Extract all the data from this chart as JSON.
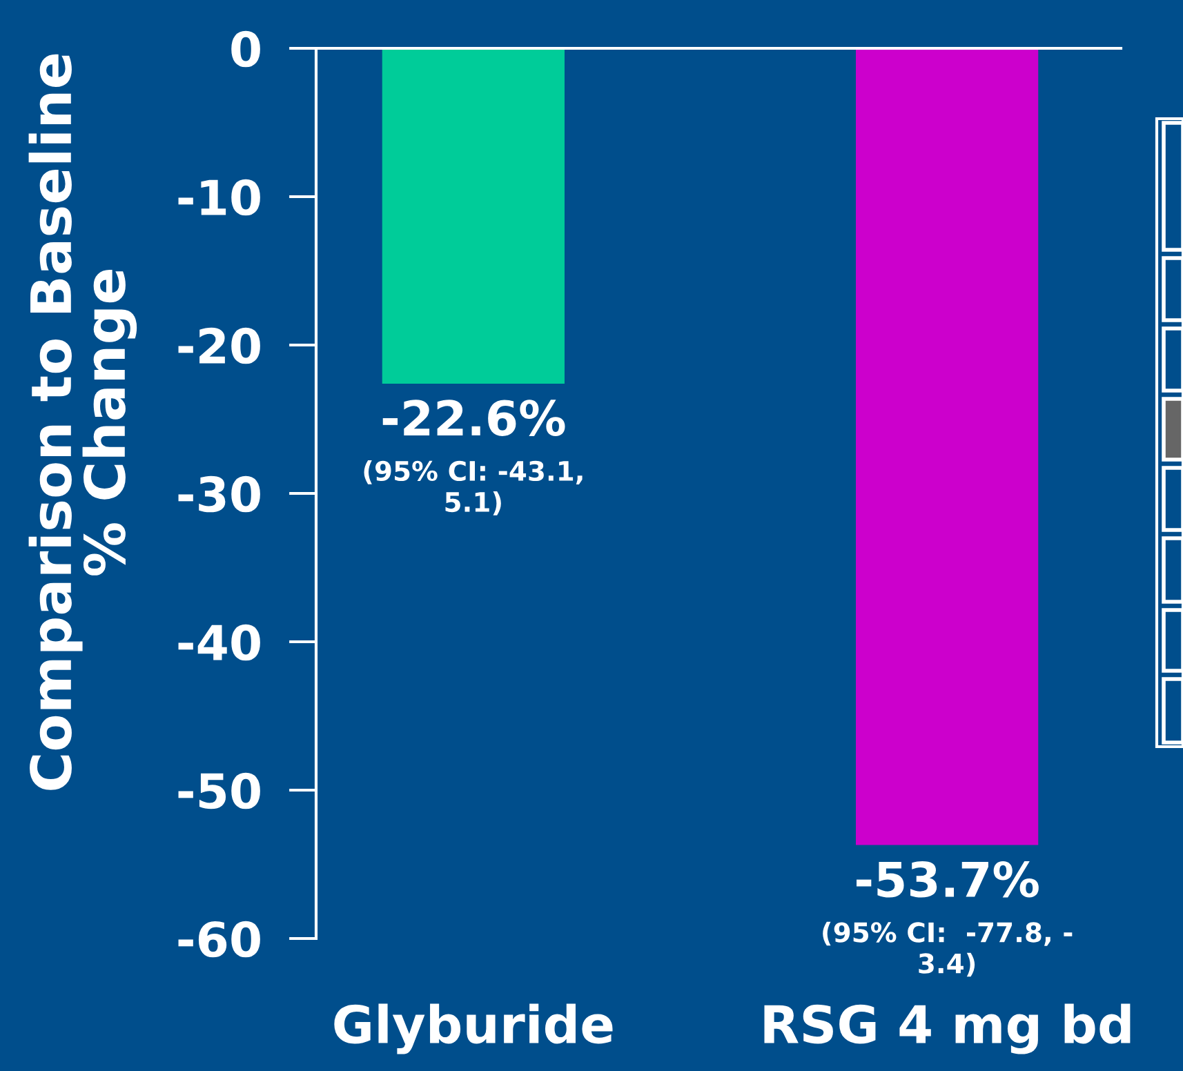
{
  "chart_data": {
    "type": "bar",
    "ylabel": "Comparison to Baseline\n% Change",
    "categories": [
      "Glyburide",
      "RSG 4 mg bd"
    ],
    "values": [
      -22.6,
      -53.7
    ],
    "colors": [
      "#00cc99",
      "#cc00cc"
    ],
    "value_labels": [
      "-22.6%",
      "-53.7%"
    ],
    "annotations": [
      {
        "text": "(95% CI: -43.1,\n5.1)",
        "x": "Glyburide",
        "y": -22.6
      },
      {
        "text": "(95% CI:  -77.8, -\n3.4)",
        "x": "RSG 4 mg bd",
        "y": -53.7
      }
    ],
    "ylim": [
      -60,
      0
    ],
    "yticks": [
      0,
      -10,
      -20,
      -30,
      -40,
      -50,
      -60
    ]
  }
}
